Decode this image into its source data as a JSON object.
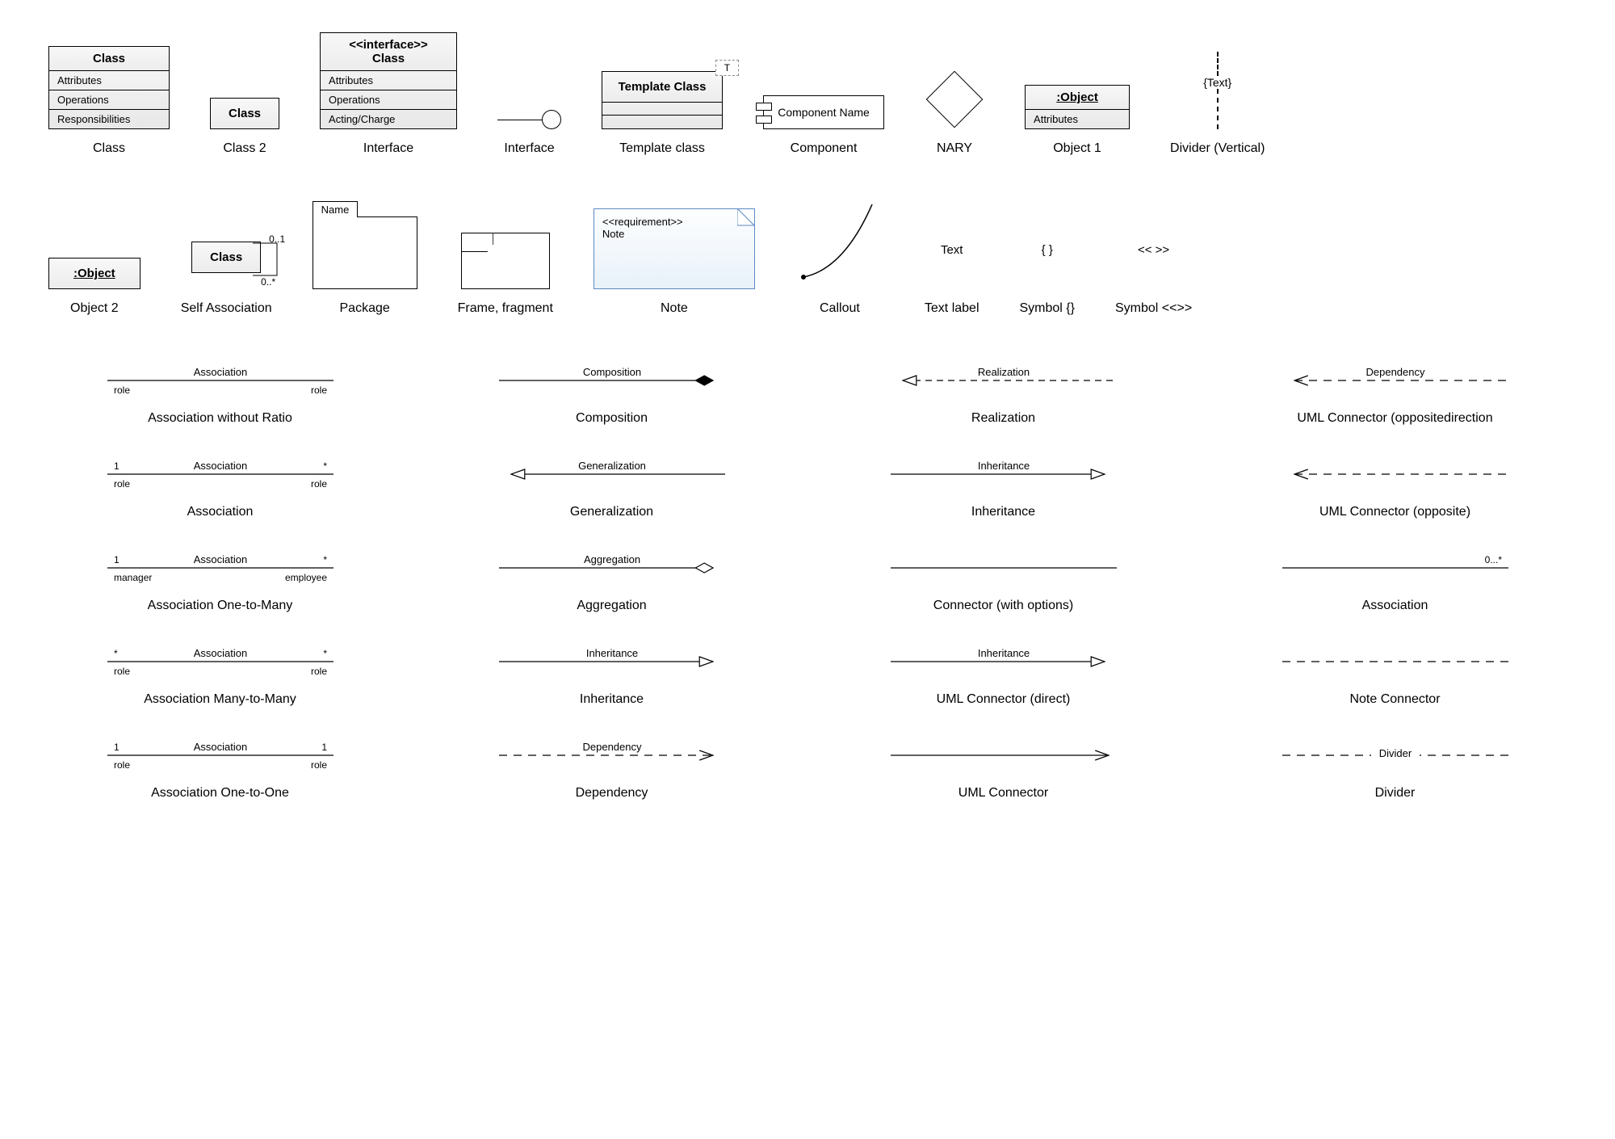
{
  "colors": {
    "stroke": "#000000",
    "fill_grad_a": "#f8f8f8",
    "fill_grad_b": "#ececec",
    "note_border": "#5b8ac0",
    "note_fill_a": "#fdfefe",
    "note_fill_b": "#e8f1fa",
    "bg": "#ffffff"
  },
  "row1": {
    "class": {
      "title": "Class",
      "attrs": "Attributes",
      "ops": "Operations",
      "resp": "Responsibilities",
      "caption": "Class"
    },
    "class2": {
      "title": "Class",
      "caption": "Class 2"
    },
    "interface": {
      "stereotype": "<<interface>>",
      "title": "Class",
      "attrs": "Attributes",
      "ops": "Operations",
      "acting": "Acting/Charge",
      "caption": "Interface"
    },
    "lollipop": {
      "caption": "Interface"
    },
    "template": {
      "title": "Template Class",
      "tag": "T",
      "caption": "Template class"
    },
    "component": {
      "name": "Component Name",
      "caption": "Component"
    },
    "nary": {
      "caption": "NARY"
    },
    "object1": {
      "title": ":Object",
      "attrs": "Attributes",
      "caption": "Object 1"
    },
    "divider": {
      "text": "{Text}",
      "caption": "Divider (Vertical)"
    }
  },
  "row2": {
    "object2": {
      "title": ":Object",
      "caption": "Object 2"
    },
    "selfassoc": {
      "title": "Class",
      "mult_top": "0..1",
      "mult_bot": "0..*",
      "caption": "Self Association"
    },
    "package": {
      "tab": "Name",
      "caption": "Package"
    },
    "frame": {
      "caption": "Frame, fragment"
    },
    "note": {
      "stereotype": "<<requirement>>",
      "text": "Note",
      "caption": "Note"
    },
    "callout": {
      "caption": "Callout"
    },
    "textlabel": {
      "text": "Text",
      "caption": "Text label"
    },
    "symbrace": {
      "text": "{ }",
      "caption": "Symbol {}"
    },
    "symangle": {
      "text": "<<  >>",
      "caption": "Symbol <<>>"
    }
  },
  "connectors": [
    [
      {
        "mid": "Association",
        "below_l": "role",
        "below_r": "role",
        "caption": "Association without Ratio",
        "type": "assoc"
      },
      {
        "mid": "Composition",
        "caption": "Composition",
        "type": "composition"
      },
      {
        "mid": "Realization",
        "caption": "Realization",
        "type": "realization"
      },
      {
        "mid": "Dependency",
        "caption": "UML Connector (oppositedirection",
        "type": "dep-left"
      }
    ],
    [
      {
        "above_l": "1",
        "mid": "Association",
        "above_r": "*",
        "below_l": "role",
        "below_r": "role",
        "caption": "Association",
        "type": "assoc"
      },
      {
        "mid": "Generalization",
        "caption": "Generalization",
        "type": "gen-left"
      },
      {
        "mid": "Inheritance",
        "caption": "Inheritance",
        "type": "inherit-right"
      },
      {
        "caption": "UML Connector (opposite)",
        "type": "dash-left"
      }
    ],
    [
      {
        "above_l": "1",
        "mid": "Association",
        "above_r": "*",
        "below_l": "manager",
        "below_r": "employee",
        "caption": "Association One-to-Many",
        "type": "assoc"
      },
      {
        "mid": "Aggregation",
        "caption": "Aggregation",
        "type": "aggregation"
      },
      {
        "caption": "Connector (with options)",
        "type": "plain"
      },
      {
        "above_r": "0...*",
        "caption": "Association",
        "type": "plain"
      }
    ],
    [
      {
        "above_l": "*",
        "mid": "Association",
        "above_r": "*",
        "below_l": "role",
        "below_r": "role",
        "caption": "Association Many-to-Many",
        "type": "assoc"
      },
      {
        "mid": "Inheritance",
        "caption": "Inheritance",
        "type": "inherit-right"
      },
      {
        "mid": "Inheritance",
        "caption": "UML Connector (direct)",
        "type": "inherit-right"
      },
      {
        "caption": "Note Connector",
        "type": "dashline"
      }
    ],
    [
      {
        "above_l": "1",
        "mid": "Association",
        "above_r": "1",
        "below_l": "role",
        "below_r": "role",
        "caption": "Association One-to-One",
        "type": "assoc"
      },
      {
        "mid": "Dependency",
        "caption": "Dependency",
        "type": "dep-right"
      },
      {
        "caption": "UML Connector",
        "type": "arrow-right"
      },
      {
        "mid": "Divider",
        "caption": "Divider",
        "type": "dashline-label"
      }
    ]
  ]
}
